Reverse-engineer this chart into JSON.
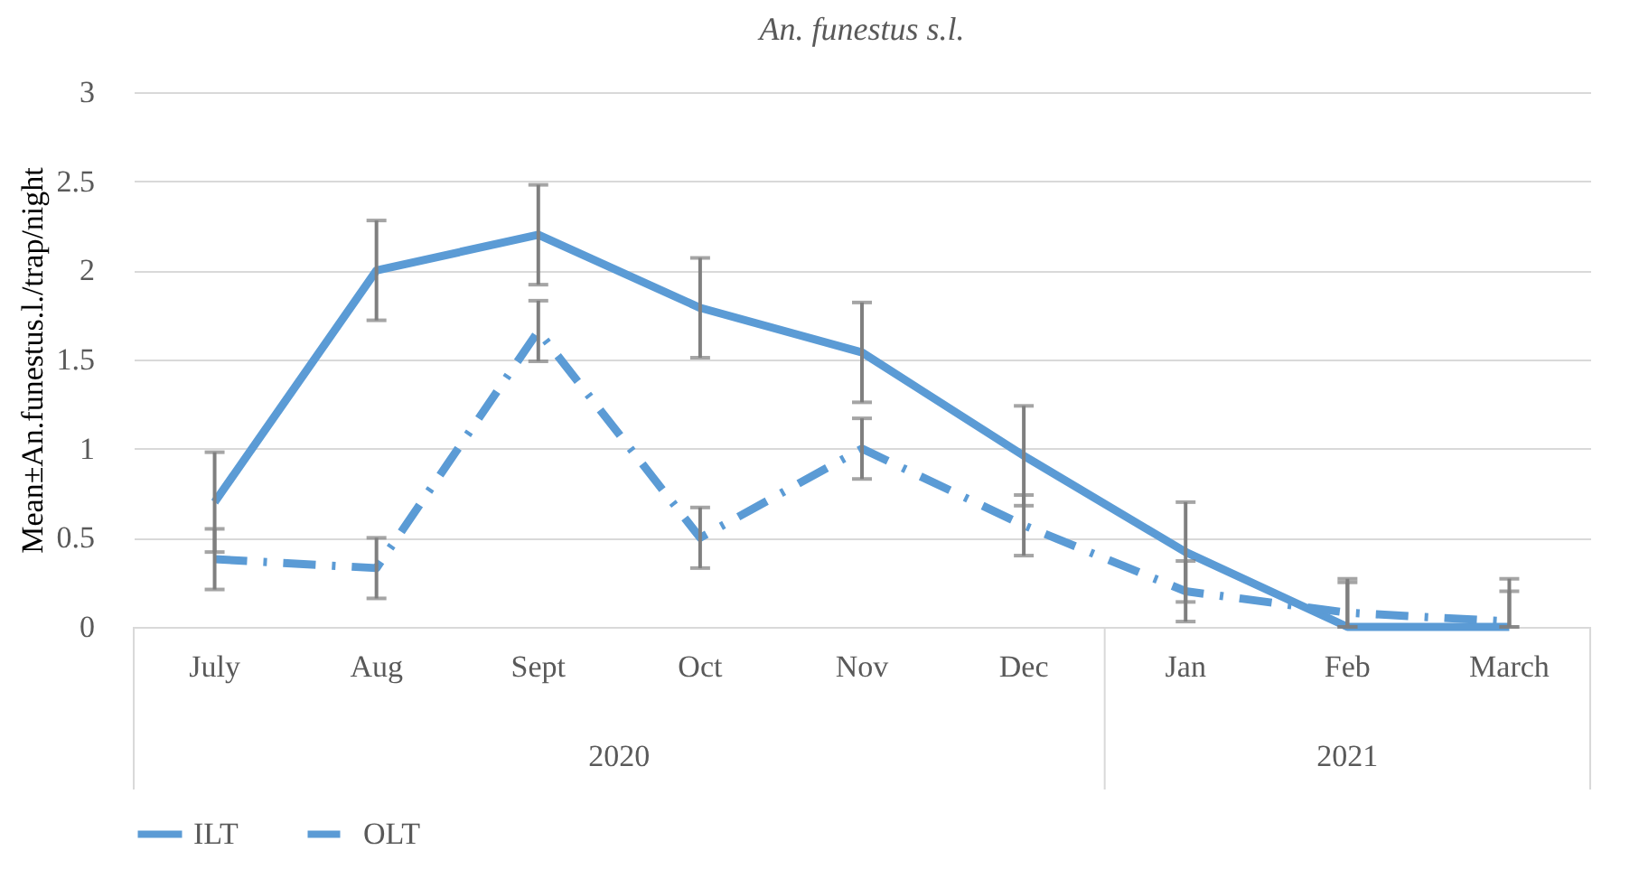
{
  "chart_data": {
    "type": "line",
    "title": "An. funestus s.l.",
    "ylabel": "Mean±An.funestus.l./trap/night",
    "categories": [
      "July",
      "Aug",
      "Sept",
      "Oct",
      "Nov",
      "Dec",
      "Jan",
      "Feb",
      "March"
    ],
    "series": [
      {
        "name": "ILT",
        "color": "#5b9bd5",
        "line_style": "solid",
        "values": [
          0.7,
          2.0,
          2.2,
          1.79,
          1.54,
          0.96,
          0.42,
          0,
          0
        ],
        "errors": [
          0.28,
          0.28,
          0.28,
          0.28,
          0.28,
          0.28,
          0.28,
          [
            0,
            0.27
          ],
          [
            0,
            0.27
          ]
        ]
      },
      {
        "name": "OLT",
        "color": "#5b9bd5",
        "line_style": "dashdot",
        "values": [
          0.38,
          0.33,
          1.66,
          0.5,
          1.0,
          0.57,
          0.2,
          0.08,
          0.03
        ],
        "errors": [
          0.17,
          0.17,
          0.17,
          0.17,
          0.17,
          0.17,
          0.17,
          [
            0,
            0.25
          ],
          [
            0,
            0.2
          ]
        ]
      }
    ],
    "annotations": [
      "2020",
      "2021"
    ],
    "ylim": [
      0,
      3
    ],
    "yticks": [
      0,
      0.5,
      1,
      1.5,
      2,
      2.5,
      3
    ],
    "grid": "y",
    "legend": "bottom",
    "marker": "none"
  }
}
